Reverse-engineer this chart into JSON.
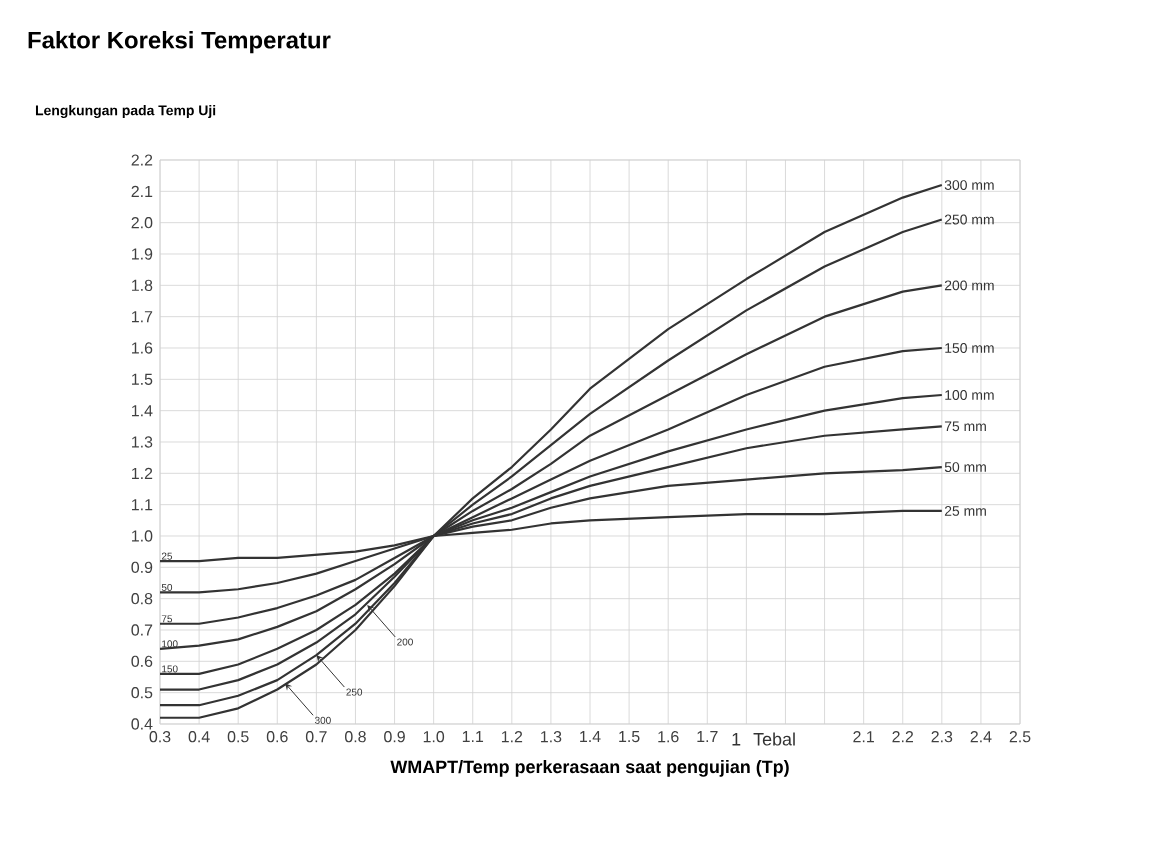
{
  "chart_data": {
    "type": "line",
    "title": "Faktor Koreksi Temperatur",
    "ylabel": "Lengkungan pada Temp Uji",
    "xlabel": "WMAPT/Temp perkerasaan saat pengujian (Tp)",
    "x": [
      0.3,
      0.4,
      0.5,
      0.6,
      0.7,
      0.8,
      0.9,
      1.0,
      1.1,
      1.2,
      1.3,
      1.4,
      1.6,
      1.8,
      2.0,
      2.2,
      2.3
    ],
    "series": [
      {
        "name": "25 mm",
        "color": "#333333",
        "values": [
          0.92,
          0.92,
          0.93,
          0.93,
          0.94,
          0.95,
          0.97,
          1.0,
          1.01,
          1.02,
          1.04,
          1.05,
          1.06,
          1.07,
          1.07,
          1.08,
          1.08
        ]
      },
      {
        "name": "50 mm",
        "color": "#333333",
        "values": [
          0.82,
          0.82,
          0.83,
          0.85,
          0.88,
          0.92,
          0.96,
          1.0,
          1.03,
          1.05,
          1.09,
          1.12,
          1.16,
          1.18,
          1.2,
          1.21,
          1.22
        ]
      },
      {
        "name": "75 mm",
        "color": "#333333",
        "values": [
          0.72,
          0.72,
          0.74,
          0.77,
          0.81,
          0.86,
          0.93,
          1.0,
          1.04,
          1.07,
          1.12,
          1.16,
          1.22,
          1.28,
          1.32,
          1.34,
          1.35
        ]
      },
      {
        "name": "100 mm",
        "color": "#333333",
        "values": [
          0.64,
          0.65,
          0.67,
          0.71,
          0.76,
          0.83,
          0.91,
          1.0,
          1.05,
          1.09,
          1.14,
          1.19,
          1.27,
          1.34,
          1.4,
          1.44,
          1.45
        ]
      },
      {
        "name": "150 mm",
        "color": "#333333",
        "values": [
          0.56,
          0.56,
          0.59,
          0.64,
          0.7,
          0.78,
          0.88,
          1.0,
          1.06,
          1.12,
          1.18,
          1.24,
          1.34,
          1.45,
          1.54,
          1.59,
          1.6
        ]
      },
      {
        "name": "200 mm",
        "color": "#333333",
        "values": [
          0.51,
          0.51,
          0.54,
          0.59,
          0.66,
          0.75,
          0.87,
          1.0,
          1.08,
          1.15,
          1.23,
          1.32,
          1.45,
          1.58,
          1.7,
          1.78,
          1.8
        ]
      },
      {
        "name": "250 mm",
        "color": "#333333",
        "values": [
          0.46,
          0.46,
          0.49,
          0.54,
          0.62,
          0.72,
          0.85,
          1.0,
          1.1,
          1.19,
          1.29,
          1.39,
          1.56,
          1.72,
          1.86,
          1.97,
          2.01
        ]
      },
      {
        "name": "300 mm",
        "color": "#333333",
        "values": [
          0.42,
          0.42,
          0.45,
          0.51,
          0.59,
          0.7,
          0.84,
          1.0,
          1.12,
          1.22,
          1.34,
          1.47,
          1.66,
          1.82,
          1.97,
          2.08,
          2.12
        ]
      }
    ],
    "annotations": [
      {
        "text": "25",
        "x": 0.3,
        "y": 0.92
      },
      {
        "text": "50",
        "x": 0.3,
        "y": 0.82
      },
      {
        "text": "75",
        "x": 0.3,
        "y": 0.72
      },
      {
        "text": "100",
        "x": 0.3,
        "y": 0.64
      },
      {
        "text": "150",
        "x": 0.3,
        "y": 0.56
      },
      {
        "text": "200",
        "x": 0.83,
        "y": 0.78
      },
      {
        "text": "250",
        "x": 0.7,
        "y": 0.62
      },
      {
        "text": "300",
        "x": 0.62,
        "y": 0.53
      },
      "1",
      "Tebal"
    ],
    "xlim": [
      0.3,
      2.5
    ],
    "ylim": [
      0.4,
      2.2
    ],
    "xticks": [
      0.3,
      0.4,
      0.5,
      0.6,
      0.7,
      0.8,
      0.9,
      {
        "value": 1.0,
        "label": "1.0"
      },
      1.1,
      1.2,
      1.3,
      1.4,
      1.5,
      1.6,
      1.7,
      {
        "value": 1.8,
        "label": null
      },
      {
        "value": 1.9,
        "label": null
      },
      {
        "value": 2.0,
        "label": null
      },
      2.1,
      2.2,
      2.3,
      2.4,
      2.5
    ],
    "yticks": [
      0.4,
      0.5,
      0.6,
      0.7,
      0.8,
      0.9,
      {
        "value": 1.0,
        "label": "1.0"
      },
      1.1,
      1.2,
      1.3,
      1.4,
      1.5,
      1.6,
      1.7,
      1.8,
      1.9,
      {
        "value": 2.0,
        "label": "2.0"
      },
      2.1,
      2.2
    ],
    "grid": true,
    "legend": false,
    "marker": "none",
    "line_style": "solid"
  }
}
